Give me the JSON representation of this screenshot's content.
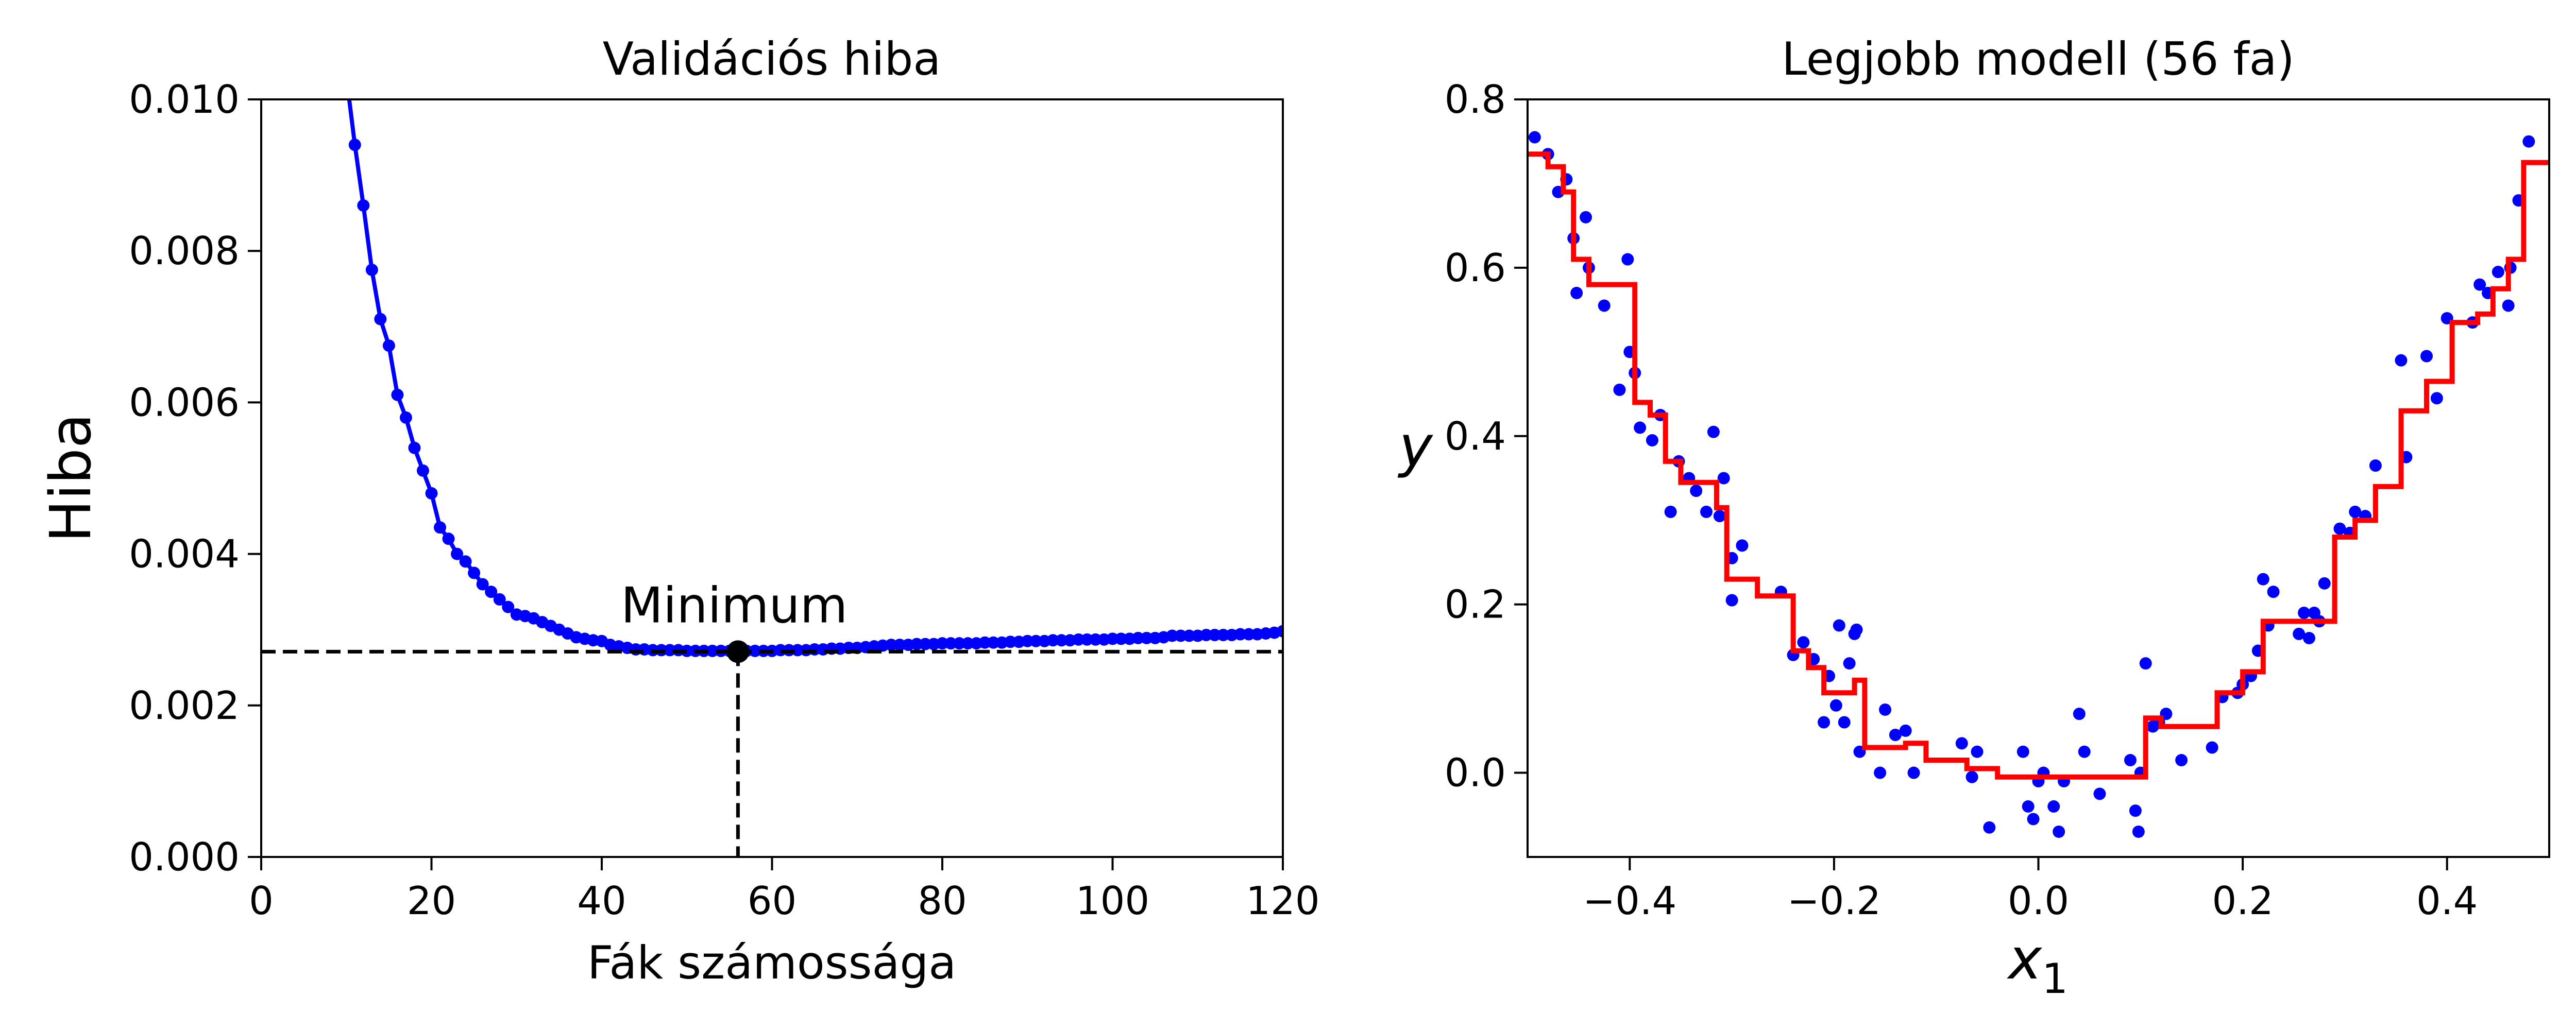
{
  "colors": {
    "series": "#0000ff",
    "fit": "#ff0000",
    "reference": "#000000"
  },
  "chart_data": [
    {
      "type": "line",
      "title": "Validációs hiba",
      "xlabel": "Fák számossága",
      "ylabel": "Hiba",
      "xlim": [
        0,
        120
      ],
      "ylim": [
        0,
        0.01
      ],
      "xticks": [
        0,
        20,
        40,
        60,
        80,
        100,
        120
      ],
      "yticks": [
        0.0,
        0.002,
        0.004,
        0.006,
        0.008,
        0.01
      ],
      "xtick_labels": [
        "0",
        "20",
        "40",
        "60",
        "80",
        "100",
        "120"
      ],
      "ytick_labels": [
        "0.000",
        "0.002",
        "0.004",
        "0.006",
        "0.008",
        "0.010"
      ],
      "grid": false,
      "series": [
        {
          "marker": "circle",
          "x": [
            10,
            11,
            12,
            13,
            14,
            15,
            16,
            17,
            18,
            19,
            20,
            21,
            22,
            23,
            24,
            25,
            26,
            27,
            28,
            29,
            30,
            31,
            32,
            33,
            34,
            35,
            36,
            37,
            38,
            39,
            40,
            41,
            42,
            43,
            44,
            45,
            46,
            47,
            48,
            49,
            50,
            51,
            52,
            53,
            54,
            55,
            56,
            57,
            58,
            59,
            60,
            61,
            62,
            63,
            64,
            65,
            66,
            67,
            68,
            69,
            70,
            71,
            72,
            73,
            74,
            75,
            76,
            77,
            78,
            79,
            80,
            81,
            82,
            83,
            84,
            85,
            86,
            87,
            88,
            89,
            90,
            91,
            92,
            93,
            94,
            95,
            96,
            97,
            98,
            99,
            100,
            101,
            102,
            103,
            104,
            105,
            106,
            107,
            108,
            109,
            110,
            111,
            112,
            113,
            114,
            115,
            116,
            117,
            118,
            119,
            120
          ],
          "y": [
            0.0103,
            0.0094,
            0.0086,
            0.00775,
            0.0071,
            0.00675,
            0.0061,
            0.0058,
            0.0054,
            0.0051,
            0.0048,
            0.00435,
            0.0042,
            0.004,
            0.0039,
            0.00375,
            0.0036,
            0.0035,
            0.0034,
            0.0033,
            0.0032,
            0.00318,
            0.00315,
            0.0031,
            0.00305,
            0.003,
            0.00295,
            0.0029,
            0.00288,
            0.00286,
            0.00285,
            0.0028,
            0.00278,
            0.00276,
            0.00274,
            0.00274,
            0.00273,
            0.00273,
            0.00273,
            0.00273,
            0.00272,
            0.00272,
            0.00272,
            0.00272,
            0.00272,
            0.00272,
            0.00271,
            0.00272,
            0.00272,
            0.00272,
            0.00272,
            0.00273,
            0.00273,
            0.00273,
            0.00273,
            0.00274,
            0.00274,
            0.00275,
            0.00275,
            0.00276,
            0.00276,
            0.00277,
            0.00278,
            0.00279,
            0.0028,
            0.0028,
            0.0028,
            0.00281,
            0.00281,
            0.00281,
            0.00282,
            0.00282,
            0.00282,
            0.00282,
            0.00282,
            0.00283,
            0.00283,
            0.00283,
            0.00284,
            0.00284,
            0.00285,
            0.00285,
            0.00285,
            0.00286,
            0.00286,
            0.00286,
            0.00287,
            0.00287,
            0.00287,
            0.00287,
            0.00288,
            0.00288,
            0.00288,
            0.00289,
            0.00289,
            0.00289,
            0.0029,
            0.00292,
            0.00292,
            0.00292,
            0.00292,
            0.00293,
            0.00293,
            0.00293,
            0.00293,
            0.00294,
            0.00294,
            0.00294,
            0.00295,
            0.00296,
            0.00298
          ]
        }
      ],
      "reference_lines": {
        "x": 56,
        "y": 0.00271
      },
      "minimum_point": {
        "x": 56,
        "y": 0.00271
      },
      "annotation": {
        "text": "Minimum",
        "x": 56,
        "y": 0.0033
      }
    },
    {
      "type": "scatter",
      "title": "Legjobb modell (56 fa)",
      "xlabel_main": "x",
      "xlabel_sub": "1",
      "ylabel": "y",
      "xlim": [
        -0.5,
        0.5
      ],
      "ylim": [
        -0.1,
        0.8
      ],
      "xticks": [
        -0.4,
        -0.2,
        0.0,
        0.2,
        0.4
      ],
      "yticks": [
        0.0,
        0.2,
        0.4,
        0.6,
        0.8
      ],
      "xtick_labels": [
        "−0.4",
        "−0.2",
        "0.0",
        "0.2",
        "0.4"
      ],
      "ytick_labels": [
        "0.0",
        "0.2",
        "0.4",
        "0.6",
        "0.8"
      ],
      "grid": false,
      "points": {
        "x": [
          -0.493,
          -0.48,
          -0.47,
          -0.462,
          -0.455,
          -0.452,
          -0.443,
          -0.44,
          -0.425,
          -0.41,
          -0.402,
          -0.4,
          -0.395,
          -0.39,
          -0.378,
          -0.37,
          -0.36,
          -0.352,
          -0.342,
          -0.335,
          -0.325,
          -0.318,
          -0.312,
          -0.308,
          -0.3,
          -0.3,
          -0.29,
          -0.252,
          -0.24,
          -0.23,
          -0.22,
          -0.21,
          -0.205,
          -0.198,
          -0.195,
          -0.19,
          -0.185,
          -0.18,
          -0.178,
          -0.175,
          -0.155,
          -0.15,
          -0.14,
          -0.13,
          -0.122,
          -0.075,
          -0.065,
          -0.06,
          -0.048,
          -0.015,
          -0.01,
          -0.005,
          0.0,
          0.005,
          0.015,
          0.02,
          0.025,
          0.04,
          0.045,
          0.06,
          0.09,
          0.095,
          0.098,
          0.1,
          0.105,
          0.112,
          0.118,
          0.125,
          0.14,
          0.17,
          0.18,
          0.195,
          0.2,
          0.208,
          0.215,
          0.22,
          0.225,
          0.23,
          0.255,
          0.26,
          0.265,
          0.27,
          0.275,
          0.28,
          0.295,
          0.305,
          0.31,
          0.32,
          0.33,
          0.355,
          0.36,
          0.38,
          0.39,
          0.4,
          0.425,
          0.432,
          0.44,
          0.45,
          0.46,
          0.462,
          0.47,
          0.48
        ],
        "y": [
          0.755,
          0.735,
          0.69,
          0.705,
          0.635,
          0.57,
          0.66,
          0.6,
          0.555,
          0.455,
          0.61,
          0.5,
          0.475,
          0.41,
          0.395,
          0.425,
          0.31,
          0.37,
          0.35,
          0.335,
          0.31,
          0.405,
          0.305,
          0.35,
          0.255,
          0.205,
          0.27,
          0.215,
          0.14,
          0.155,
          0.135,
          0.06,
          0.115,
          0.08,
          0.175,
          0.06,
          0.13,
          0.165,
          0.17,
          0.025,
          0.0,
          0.075,
          0.045,
          0.05,
          0.0,
          0.035,
          -0.005,
          0.025,
          -0.065,
          0.025,
          -0.04,
          -0.055,
          -0.01,
          0.0,
          -0.04,
          -0.07,
          -0.01,
          0.07,
          0.025,
          -0.025,
          0.015,
          -0.045,
          -0.07,
          0.0,
          0.13,
          0.055,
          0.06,
          0.07,
          0.015,
          0.03,
          0.09,
          0.095,
          0.105,
          0.115,
          0.145,
          0.23,
          0.175,
          0.215,
          0.165,
          0.19,
          0.16,
          0.19,
          0.18,
          0.225,
          0.29,
          0.285,
          0.31,
          0.305,
          0.365,
          0.49,
          0.375,
          0.495,
          0.445,
          0.54,
          0.535,
          0.58,
          0.57,
          0.595,
          0.555,
          0.6,
          0.68,
          0.75
        ]
      },
      "prediction_steps": {
        "x": [
          -0.5,
          -0.48,
          -0.48,
          -0.465,
          -0.465,
          -0.455,
          -0.455,
          -0.44,
          -0.44,
          -0.395,
          -0.395,
          -0.38,
          -0.38,
          -0.365,
          -0.365,
          -0.35,
          -0.35,
          -0.315,
          -0.315,
          -0.305,
          -0.305,
          -0.275,
          -0.275,
          -0.24,
          -0.24,
          -0.225,
          -0.225,
          -0.21,
          -0.21,
          -0.18,
          -0.18,
          -0.17,
          -0.17,
          -0.13,
          -0.13,
          -0.11,
          -0.11,
          -0.07,
          -0.07,
          -0.04,
          -0.04,
          0.105,
          0.105,
          0.12,
          0.12,
          0.175,
          0.175,
          0.2,
          0.2,
          0.22,
          0.22,
          0.29,
          0.29,
          0.31,
          0.31,
          0.33,
          0.33,
          0.355,
          0.355,
          0.38,
          0.38,
          0.405,
          0.405,
          0.43,
          0.43,
          0.445,
          0.445,
          0.46,
          0.46,
          0.475,
          0.475,
          0.5
        ],
        "y": [
          0.735,
          0.735,
          0.72,
          0.72,
          0.69,
          0.69,
          0.61,
          0.61,
          0.58,
          0.58,
          0.44,
          0.44,
          0.425,
          0.425,
          0.37,
          0.37,
          0.345,
          0.345,
          0.315,
          0.315,
          0.23,
          0.23,
          0.21,
          0.21,
          0.145,
          0.145,
          0.125,
          0.125,
          0.095,
          0.095,
          0.11,
          0.11,
          0.03,
          0.03,
          0.035,
          0.035,
          0.015,
          0.015,
          0.005,
          0.005,
          -0.005,
          -0.005,
          0.065,
          0.065,
          0.055,
          0.055,
          0.095,
          0.095,
          0.12,
          0.12,
          0.18,
          0.18,
          0.28,
          0.28,
          0.3,
          0.3,
          0.34,
          0.34,
          0.43,
          0.43,
          0.465,
          0.465,
          0.535,
          0.535,
          0.545,
          0.545,
          0.575,
          0.575,
          0.61,
          0.61,
          0.725,
          0.725
        ]
      }
    }
  ]
}
